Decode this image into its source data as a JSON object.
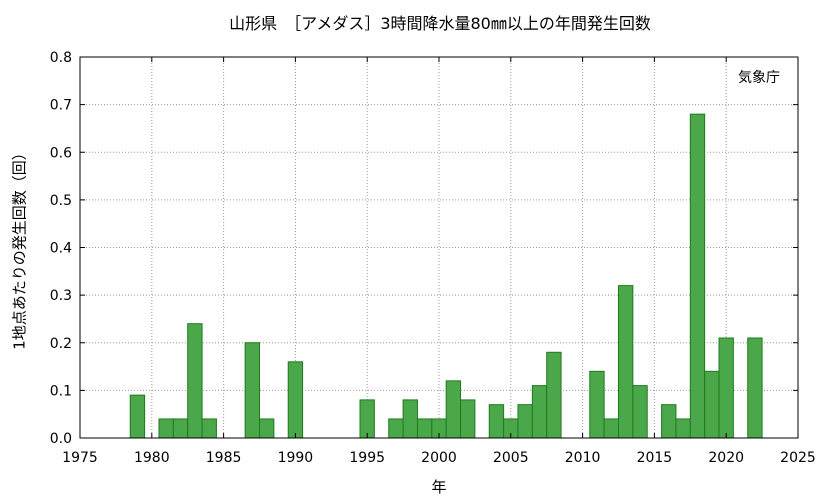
{
  "chart_data": {
    "type": "bar",
    "title": "山形県　［アメダス］3時間降水量80㎜以上の年間発生回数",
    "xlabel": "年",
    "ylabel": "1地点あたりの発生回数（回）",
    "source": "気象庁",
    "xlim": [
      1975,
      2025
    ],
    "ylim": [
      0,
      0.8
    ],
    "xticks": [
      1975,
      1980,
      1985,
      1990,
      1995,
      2000,
      2005,
      2010,
      2015,
      2020,
      2025
    ],
    "yticks": [
      "0.0",
      "0.1",
      "0.2",
      "0.3",
      "0.4",
      "0.5",
      "0.6",
      "0.7",
      "0.8"
    ],
    "grid": true,
    "bar_color": "#4aa84a",
    "bar_edge_color": "#1f7a1f",
    "bars": [
      {
        "year": 1979,
        "value": 0.09
      },
      {
        "year": 1981,
        "value": 0.04
      },
      {
        "year": 1982,
        "value": 0.04
      },
      {
        "year": 1983,
        "value": 0.24
      },
      {
        "year": 1984,
        "value": 0.04
      },
      {
        "year": 1987,
        "value": 0.2
      },
      {
        "year": 1988,
        "value": 0.04
      },
      {
        "year": 1990,
        "value": 0.16
      },
      {
        "year": 1995,
        "value": 0.08
      },
      {
        "year": 1997,
        "value": 0.04
      },
      {
        "year": 1998,
        "value": 0.08
      },
      {
        "year": 1999,
        "value": 0.04
      },
      {
        "year": 2000,
        "value": 0.04
      },
      {
        "year": 2001,
        "value": 0.12
      },
      {
        "year": 2002,
        "value": 0.08
      },
      {
        "year": 2004,
        "value": 0.07
      },
      {
        "year": 2005,
        "value": 0.04
      },
      {
        "year": 2006,
        "value": 0.07
      },
      {
        "year": 2007,
        "value": 0.11
      },
      {
        "year": 2008,
        "value": 0.18
      },
      {
        "year": 2011,
        "value": 0.14
      },
      {
        "year": 2012,
        "value": 0.04
      },
      {
        "year": 2013,
        "value": 0.32
      },
      {
        "year": 2014,
        "value": 0.11
      },
      {
        "year": 2016,
        "value": 0.07
      },
      {
        "year": 2017,
        "value": 0.04
      },
      {
        "year": 2018,
        "value": 0.68
      },
      {
        "year": 2019,
        "value": 0.14
      },
      {
        "year": 2020,
        "value": 0.21
      },
      {
        "year": 2022,
        "value": 0.21
      }
    ]
  }
}
